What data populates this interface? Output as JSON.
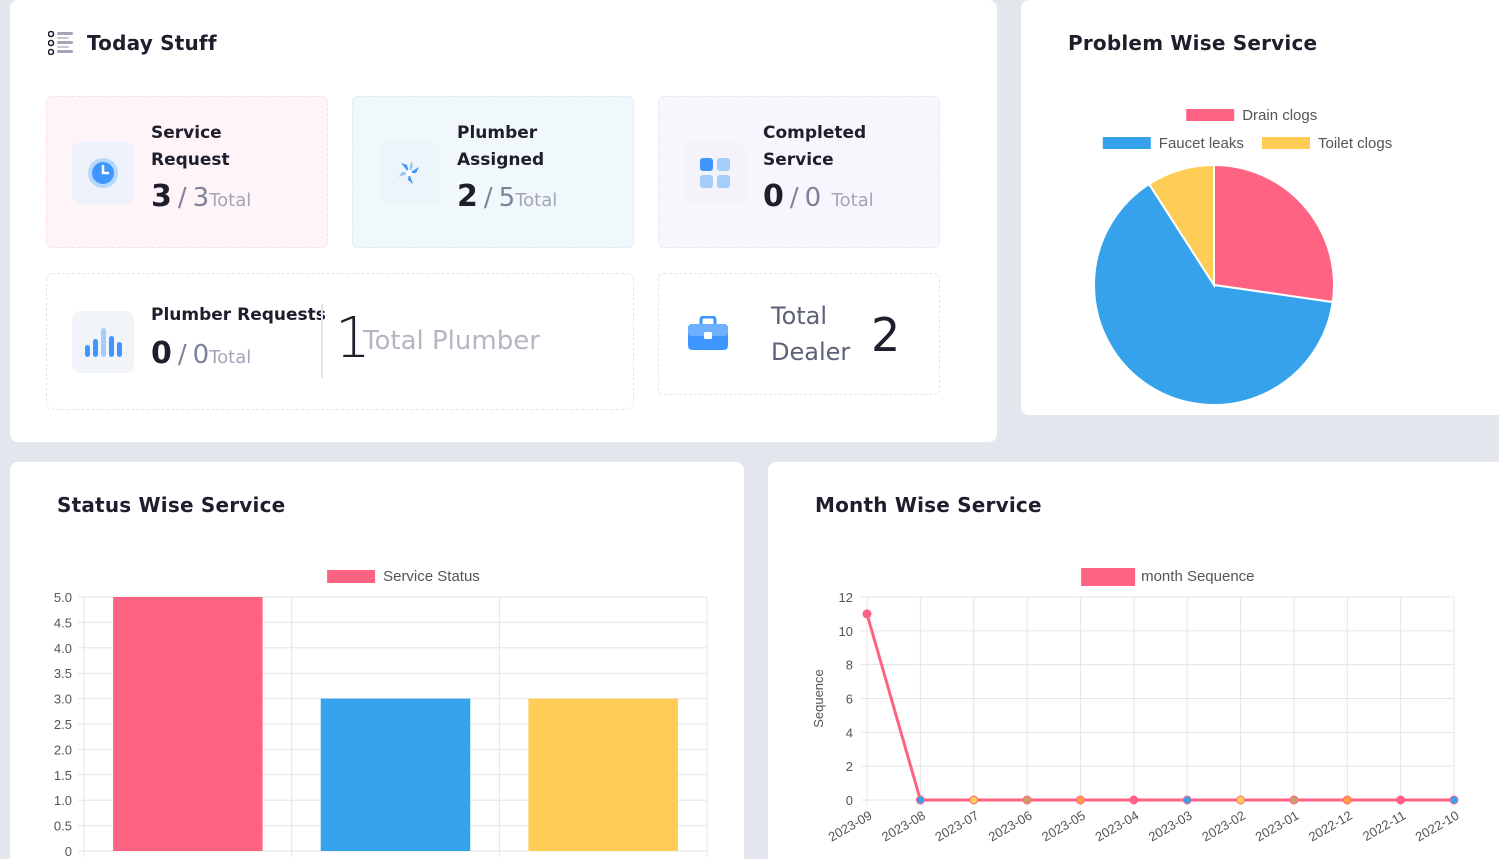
{
  "today": {
    "title": "Today Stuff",
    "service_request": {
      "label1": "Service",
      "label2": "Request",
      "value": "3",
      "sep": "/",
      "total": "3",
      "total_word": "Total"
    },
    "plumber_assigned": {
      "label1": "Plumber",
      "label2": "Assigned",
      "value": "2",
      "sep": "/",
      "total": "5",
      "total_word": "Total"
    },
    "completed_service": {
      "label1": "Completed",
      "label2": "Service",
      "value": "0",
      "sep": "/",
      "total": "0",
      "total_word": "Total"
    },
    "plumber_requests": {
      "label": "Plumber Requests",
      "value": "0",
      "sep": "/",
      "total": "0",
      "total_word": "Total",
      "big_value": "1",
      "big_label": "Total Plumber"
    },
    "total_dealer": {
      "label1": "Total",
      "label2": "Dealer",
      "value": "2"
    }
  },
  "colors": {
    "pink": "#ff6384",
    "blue": "#36a2eb",
    "yellow": "#ffcd56",
    "accent": "#009ef7"
  },
  "icons": {
    "today": "list-icon",
    "service_request": "clock-icon",
    "plumber_assigned": "plumbing-icon",
    "completed_service": "grid-icon",
    "plumber_requests": "bar-chart-icon",
    "total_dealer": "briefcase-icon"
  },
  "pie_card": {
    "title": "Problem Wise Service"
  },
  "status_card": {
    "title": "Status Wise Service"
  },
  "month_card": {
    "title": "Month Wise Service"
  },
  "chart_data": [
    {
      "type": "pie",
      "labels": [
        "Drain clogs",
        "Faucet leaks",
        "Toilet clogs"
      ],
      "values": [
        3,
        7,
        1
      ],
      "colors": [
        "#ff6384",
        "#36a2eb",
        "#ffcd56"
      ],
      "legend": "top"
    },
    {
      "type": "bar",
      "categories": [
        "",
        "",
        ""
      ],
      "series": [
        {
          "name": "Service Status",
          "values": [
            5,
            3,
            3
          ]
        }
      ],
      "colors": [
        "#ff6384",
        "#36a2eb",
        "#ffcd56"
      ],
      "ylim": [
        0,
        5
      ],
      "yticks": [
        "5.0",
        "4.5",
        "4.0",
        "3.5",
        "3.0",
        "2.5",
        "2.0",
        "1.5",
        "1.0",
        "0.5",
        "0"
      ],
      "grid": true,
      "legend": "top"
    },
    {
      "type": "line",
      "x": [
        "2023-09",
        "2023-08",
        "2023-07",
        "2023-06",
        "2023-05",
        "2023-04",
        "2023-03",
        "2023-02",
        "2023-01",
        "2022-12",
        "2022-11",
        "2022-10"
      ],
      "series": [
        {
          "name": "month Sequence",
          "values": [
            11,
            0,
            0,
            0,
            0,
            0,
            0,
            0,
            0,
            0,
            0,
            0
          ]
        }
      ],
      "ylabel": "Sequence",
      "ylim": [
        0,
        12
      ],
      "yticks": [
        "12",
        "10",
        "8",
        "6",
        "4",
        "2",
        "0"
      ],
      "grid": true,
      "legend": "top"
    }
  ]
}
